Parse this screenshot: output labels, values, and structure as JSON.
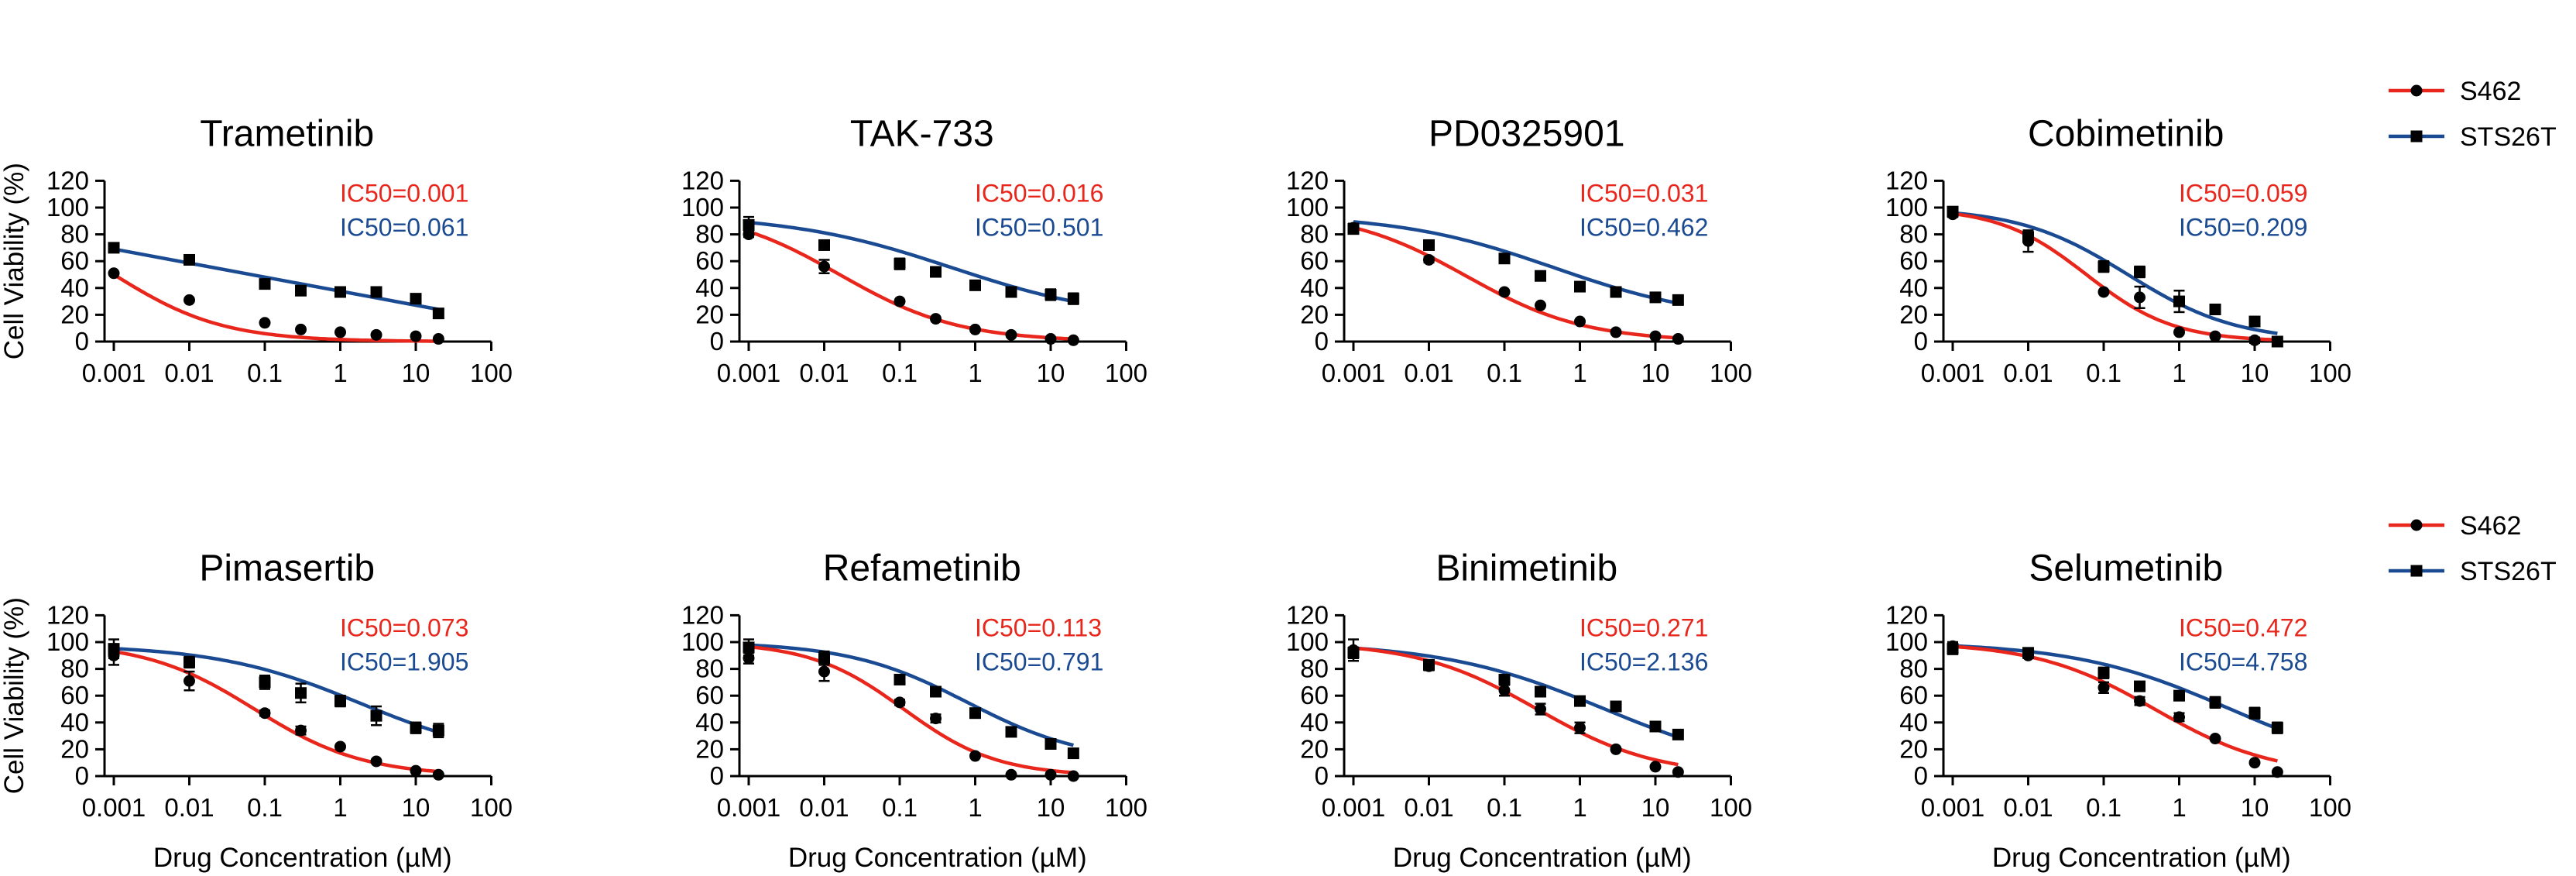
{
  "colors": {
    "S462": "#e8261c",
    "STS26T": "#1a4a92",
    "axis": "#000000"
  },
  "chart_data": {
    "type": "scatter",
    "xlabel": "Drug Concentration (µM)",
    "ylabel": "Cell Viability (%)",
    "xscale": "log",
    "xlim": [
      0.001,
      100
    ],
    "ylim": [
      0,
      120
    ],
    "x_ticks": [
      "0.001",
      "0.01",
      "0.1",
      "1",
      "10",
      "100"
    ],
    "y_ticks": [
      "0",
      "20",
      "40",
      "60",
      "80",
      "100",
      "120"
    ],
    "x_doses": [
      0.001,
      0.01,
      0.1,
      0.3,
      1,
      3,
      10,
      20
    ],
    "legend": [
      {
        "name": "S462",
        "marker": "circle",
        "color": "#e8261c"
      },
      {
        "name": "STS26T",
        "marker": "square",
        "color": "#1a4a92"
      }
    ],
    "panels": [
      {
        "title": "Trametinib",
        "curve": "line",
        "series": [
          {
            "name": "S462",
            "ic50_label": "IC50=0.001",
            "top": 100,
            "bottom": 0,
            "ic50": 0.001,
            "hill": 0.6,
            "values": [
              51,
              31,
              14,
              9,
              7,
              5,
              4,
              2
            ],
            "err": [
              1,
              1,
              1,
              1,
              1,
              1,
              1,
              1
            ]
          },
          {
            "name": "STS26T",
            "ic50_label": "IC50=0.061",
            "line": [
              [
                0.001,
                69
              ],
              [
                20,
                24
              ]
            ],
            "values": [
              70,
              61,
              43,
              38,
              37,
              37,
              32,
              21
            ],
            "err": [
              2,
              3,
              3,
              2,
              2,
              1,
              3,
              2
            ]
          }
        ]
      },
      {
        "title": "TAK-733",
        "curve": "sigmoid",
        "series": [
          {
            "name": "S462",
            "ic50_label": "IC50=0.016",
            "top": 100,
            "bottom": 0,
            "ic50": 0.016,
            "hill": 0.55,
            "values": [
              80,
              56,
              30,
              17,
              9,
              5,
              2,
              1
            ],
            "err": [
              2,
              5,
              1,
              1,
              1,
              1,
              1,
              1
            ]
          },
          {
            "name": "STS26T",
            "ic50_label": "IC50=0.501",
            "top": 95,
            "bottom": 15,
            "ic50": 0.501,
            "hill": 0.4,
            "values": [
              87,
              72,
              58,
              52,
              42,
              37,
              35,
              32
            ],
            "err": [
              6,
              3,
              4,
              2,
              2,
              2,
              4,
              4
            ]
          }
        ]
      },
      {
        "title": "PD0325901",
        "curve": "sigmoid",
        "series": [
          {
            "name": "S462",
            "ic50_label": "IC50=0.031",
            "top": 98,
            "bottom": 0,
            "ic50": 0.031,
            "hill": 0.55,
            "values": [
              85,
              61,
              37,
              27,
              15,
              7,
              4,
              2
            ],
            "err": [
              3,
              2,
              1,
              1,
              1,
              1,
              1,
              1
            ]
          },
          {
            "name": "STS26T",
            "ic50_label": "IC50=0.462",
            "top": 95,
            "bottom": 15,
            "ic50": 0.462,
            "hill": 0.42,
            "values": [
              84,
              72,
              62,
              49,
              41,
              37,
              33,
              31
            ],
            "err": [
              2,
              2,
              3,
              2,
              2,
              3,
              3,
              2
            ]
          }
        ]
      },
      {
        "title": "Cobimetinib",
        "curve": "sigmoid",
        "series": [
          {
            "name": "S462",
            "ic50_label": "IC50=0.059",
            "top": 100,
            "bottom": 0,
            "ic50": 0.059,
            "hill": 0.75,
            "values": [
              95,
              75,
              37,
              33,
              7,
              4,
              1,
              0
            ],
            "err": [
              2,
              8,
              1,
              8,
              1,
              1,
              2,
              1
            ]
          },
          {
            "name": "STS26T",
            "ic50_label": "IC50=0.209",
            "top": 100,
            "bottom": 0,
            "ic50": 0.209,
            "hill": 0.6,
            "values": [
              97,
              78,
              56,
              52,
              30,
              24,
              15,
              0
            ],
            "err": [
              3,
              3,
              4,
              4,
              8,
              3,
              2,
              1
            ]
          }
        ]
      },
      {
        "title": "Pimasertib",
        "curve": "sigmoid",
        "series": [
          {
            "name": "S462",
            "ic50_label": "IC50=0.073",
            "top": 100,
            "bottom": 0,
            "ic50": 0.073,
            "hill": 0.6,
            "values": [
              90,
              71,
              47,
              34,
              22,
              11,
              4,
              1
            ],
            "err": [
              7,
              7,
              2,
              3,
              1,
              1,
              1,
              1
            ]
          },
          {
            "name": "STS26T",
            "ic50_label": "IC50=1.905",
            "top": 98,
            "bottom": 10,
            "ic50": 1.905,
            "hill": 0.45,
            "values": [
              95,
              85,
              70,
              62,
              56,
              45,
              36,
              34
            ],
            "err": [
              7,
              4,
              5,
              7,
              4,
              7,
              4,
              5
            ]
          }
        ]
      },
      {
        "title": "Refametinib",
        "curve": "sigmoid",
        "series": [
          {
            "name": "S462",
            "ic50_label": "IC50=0.113",
            "top": 100,
            "bottom": 0,
            "ic50": 0.113,
            "hill": 0.7,
            "values": [
              88,
              78,
              55,
              43,
              15,
              1,
              1,
              0
            ],
            "err": [
              4,
              7,
              2,
              3,
              1,
              1,
              1,
              1
            ]
          },
          {
            "name": "STS26T",
            "ic50_label": "IC50=0.791",
            "top": 100,
            "bottom": 10,
            "ic50": 0.791,
            "hill": 0.55,
            "values": [
              96,
              88,
              72,
              63,
              47,
              33,
              24,
              17
            ],
            "err": [
              6,
              5,
              3,
              3,
              2,
              2,
              3,
              2
            ]
          }
        ]
      },
      {
        "title": "Binimetinib",
        "curve": "sigmoid",
        "series": [
          {
            "name": "S462",
            "ic50_label": "IC50=0.271",
            "top": 100,
            "bottom": 0,
            "ic50": 0.271,
            "hill": 0.55,
            "values": [
              94,
              82,
              64,
              50,
              36,
              20,
              7,
              3
            ],
            "err": [
              8,
              3,
              4,
              4,
              4,
              1,
              1,
              1
            ]
          },
          {
            "name": "STS26T",
            "ic50_label": "IC50=2.136",
            "top": 100,
            "bottom": 0,
            "ic50": 2.136,
            "hill": 0.4,
            "values": [
              92,
              83,
              72,
              63,
              56,
              52,
              37,
              31
            ],
            "err": [
              4,
              3,
              2,
              1,
              1,
              1,
              3,
              3
            ]
          }
        ]
      },
      {
        "title": "Selumetinib",
        "curve": "sigmoid",
        "series": [
          {
            "name": "S462",
            "ic50_label": "IC50=0.472",
            "top": 100,
            "bottom": 0,
            "ic50": 0.472,
            "hill": 0.55,
            "values": [
              97,
              90,
              66,
              56,
              44,
              28,
              10,
              3
            ],
            "err": [
              3,
              2,
              4,
              3,
              3,
              1,
              1,
              1
            ]
          },
          {
            "name": "STS26T",
            "ic50_label": "IC50=4.758",
            "top": 100,
            "bottom": 0,
            "ic50": 4.758,
            "hill": 0.42,
            "values": [
              95,
              92,
              77,
              67,
              60,
              55,
              47,
              36
            ],
            "err": [
              4,
              3,
              4,
              2,
              2,
              4,
              4,
              4
            ]
          }
        ]
      }
    ]
  }
}
